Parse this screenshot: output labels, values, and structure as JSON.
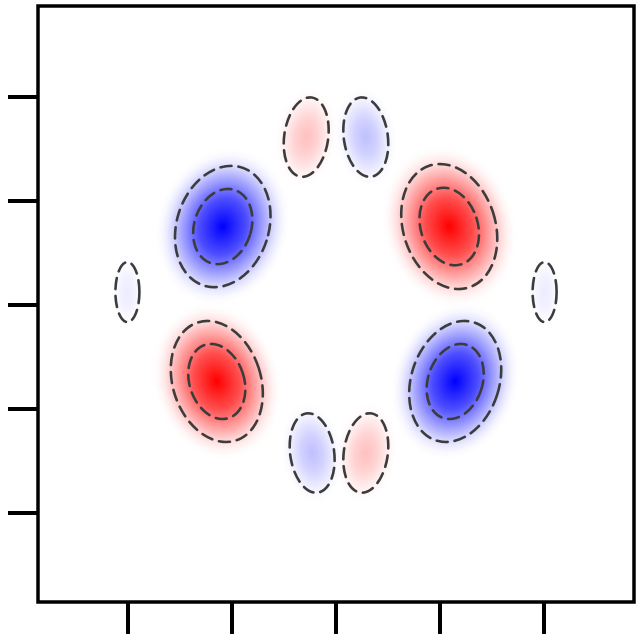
{
  "chart_data": {
    "type": "heatmap",
    "title": "",
    "xlabel": "",
    "ylabel": "",
    "x_ticks": 5,
    "y_ticks": 5,
    "tick_labels_visible": false,
    "colorscale": {
      "positive": "#ff0000",
      "zero": "#ffffff",
      "negative": "#0000ff"
    },
    "contour_style": "dashed",
    "contour_color": "#3c3c3c",
    "lobes": [
      {
        "id": "upper-left",
        "sign": -1,
        "strength": 1.0,
        "cx": 0.31,
        "cy": 0.63
      },
      {
        "id": "lower-left",
        "sign": 1,
        "strength": 1.0,
        "cx": 0.3,
        "cy": 0.37
      },
      {
        "id": "upper-right",
        "sign": 1,
        "strength": 1.0,
        "cx": 0.69,
        "cy": 0.63
      },
      {
        "id": "lower-right",
        "sign": -1,
        "strength": 1.0,
        "cx": 0.7,
        "cy": 0.37
      },
      {
        "id": "top-left",
        "sign": 1,
        "strength": 0.25,
        "cx": 0.45,
        "cy": 0.78
      },
      {
        "id": "top-right",
        "sign": -1,
        "strength": 0.25,
        "cx": 0.55,
        "cy": 0.78
      },
      {
        "id": "bottom-left",
        "sign": -1,
        "strength": 0.25,
        "cx": 0.46,
        "cy": 0.25
      },
      {
        "id": "bottom-right",
        "sign": 1,
        "strength": 0.25,
        "cx": 0.55,
        "cy": 0.25
      },
      {
        "id": "far-left",
        "sign": -1,
        "strength": 0.08,
        "cx": 0.15,
        "cy": 0.52
      },
      {
        "id": "far-right",
        "sign": -1,
        "strength": 0.08,
        "cx": 0.85,
        "cy": 0.52
      }
    ]
  }
}
